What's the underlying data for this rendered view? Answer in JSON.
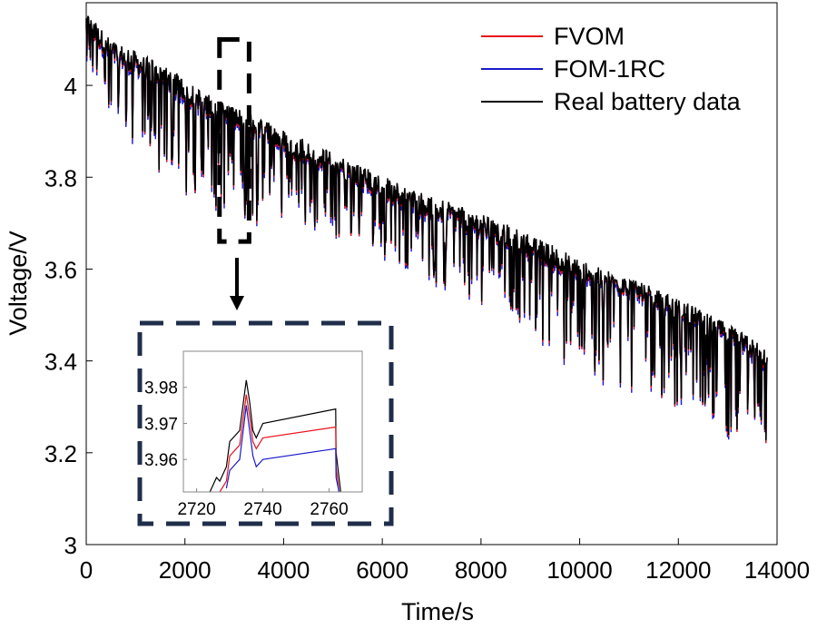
{
  "chart_data": {
    "type": "line",
    "title": "",
    "xlabel": "Time/s",
    "ylabel": "Voltage/V",
    "xlim": [
      0,
      14000
    ],
    "ylim": [
      3.0,
      4.18
    ],
    "x_ticks": [
      0,
      2000,
      4000,
      6000,
      8000,
      10000,
      12000,
      14000
    ],
    "y_ticks": [
      3,
      3.2,
      3.4,
      3.6,
      3.8,
      4
    ],
    "y_tick_labels": [
      "3",
      "3.2",
      "3.4",
      "3.6",
      "3.8",
      "4"
    ],
    "grid": false,
    "legend_position": "top-right",
    "series": [
      {
        "name": "FVOM",
        "color": "#e8141c"
      },
      {
        "name": "FOM-1RC",
        "color": "#1a1acc"
      },
      {
        "name": "Real battery data",
        "color": "#000000"
      }
    ],
    "trend": {
      "x": [
        0,
        500,
        1500,
        2500,
        3500,
        4500,
        5500,
        6500,
        7500,
        8500,
        9500,
        10500,
        11500,
        12500,
        13000,
        13800
      ],
      "upper": [
        4.16,
        4.1,
        4.05,
        3.98,
        3.93,
        3.88,
        3.83,
        3.78,
        3.74,
        3.7,
        3.65,
        3.6,
        3.56,
        3.51,
        3.48,
        3.43
      ],
      "base": [
        4.12,
        4.05,
        4.0,
        3.93,
        3.88,
        3.83,
        3.78,
        3.73,
        3.69,
        3.65,
        3.6,
        3.56,
        3.52,
        3.46,
        3.44,
        3.38
      ],
      "dip_min": [
        4.05,
        3.92,
        3.8,
        3.73,
        3.7,
        3.68,
        3.66,
        3.6,
        3.54,
        3.49,
        3.4,
        3.35,
        3.33,
        3.27,
        3.22,
        3.19
      ]
    },
    "highlight_box": {
      "x_range": [
        2700,
        3300
      ],
      "y_range": [
        3.66,
        4.1
      ]
    },
    "inset": {
      "xlim": [
        2716,
        2770
      ],
      "ylim": [
        3.951,
        3.99
      ],
      "x_ticks": [
        2720,
        2740,
        2760
      ],
      "y_ticks": [
        3.96,
        3.97,
        3.98
      ],
      "y_tick_labels": [
        "3.96",
        "3.97",
        "3.98"
      ],
      "series": [
        {
          "name": "Real battery data",
          "color": "#000000",
          "x": [
            2724,
            2726,
            2727,
            2729,
            2730,
            2733,
            2735,
            2736,
            2737,
            2738,
            2740,
            2762,
            2762.1,
            2763.5
          ],
          "y": [
            3.951,
            3.955,
            3.954,
            3.958,
            3.965,
            3.968,
            3.982,
            3.976,
            3.968,
            3.966,
            3.97,
            3.974,
            3.962,
            3.951
          ]
        },
        {
          "name": "FVOM",
          "color": "#e8141c",
          "x": [
            2727,
            2729,
            2730,
            2733,
            2735,
            2736,
            2737,
            2738,
            2740,
            2762,
            2762.1,
            2763
          ],
          "y": [
            3.951,
            3.954,
            3.961,
            3.964,
            3.978,
            3.972,
            3.965,
            3.963,
            3.966,
            3.969,
            3.958,
            3.951
          ]
        },
        {
          "name": "FOM-1RC",
          "color": "#1a1acc",
          "x": [
            2729,
            2730,
            2733,
            2735,
            2736,
            2737,
            2738,
            2740,
            2762,
            2762.1,
            2763
          ],
          "y": [
            3.952,
            3.957,
            3.96,
            3.975,
            3.968,
            3.961,
            3.958,
            3.96,
            3.963,
            3.955,
            3.951
          ]
        }
      ]
    }
  }
}
